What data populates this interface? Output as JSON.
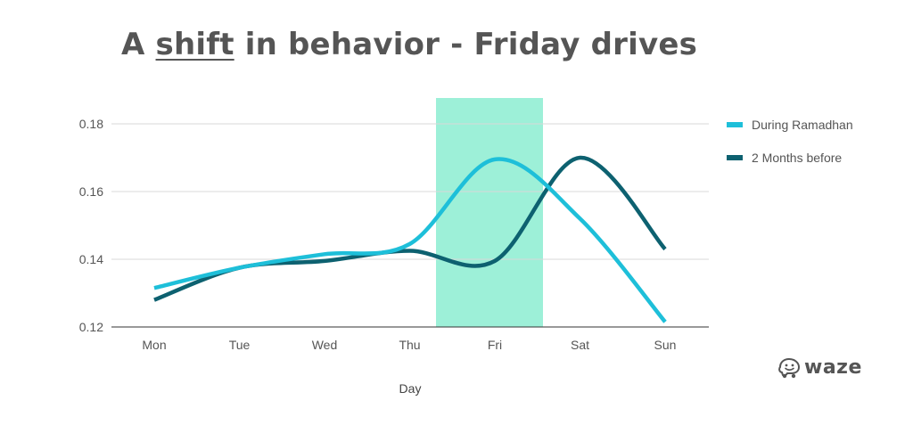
{
  "title": {
    "before": "A ",
    "emphasis": "shift",
    "after": " in behavior - Friday drives"
  },
  "logo": {
    "text": "waze",
    "icon": "waze-smiley-icon"
  },
  "colors": {
    "during": "#1ebfd9",
    "before": "#0d6170",
    "highlight": "#9df0d8",
    "grid": "#d9d9d9",
    "text": "#555555"
  },
  "chart_data": {
    "type": "line",
    "xlabel": "Day",
    "ylabel": "",
    "categories": [
      "Mon",
      "Tue",
      "Wed",
      "Thu",
      "Fri",
      "Sat",
      "Sun"
    ],
    "yticks": [
      "0.12",
      "0.14",
      "0.16",
      "0.18"
    ],
    "ylim": [
      0.12,
      0.18
    ],
    "highlight_category": "Fri",
    "legend_position": "right",
    "grid": true,
    "series": [
      {
        "name": "During Ramadhan",
        "color": "#1ebfd9",
        "values": [
          0.1315,
          0.1375,
          0.1415,
          0.1445,
          0.1695,
          0.152,
          0.1215
        ]
      },
      {
        "name": "2 Months before",
        "color": "#0d6170",
        "values": [
          0.128,
          0.1375,
          0.1395,
          0.1425,
          0.1395,
          0.17,
          0.143
        ]
      }
    ]
  }
}
